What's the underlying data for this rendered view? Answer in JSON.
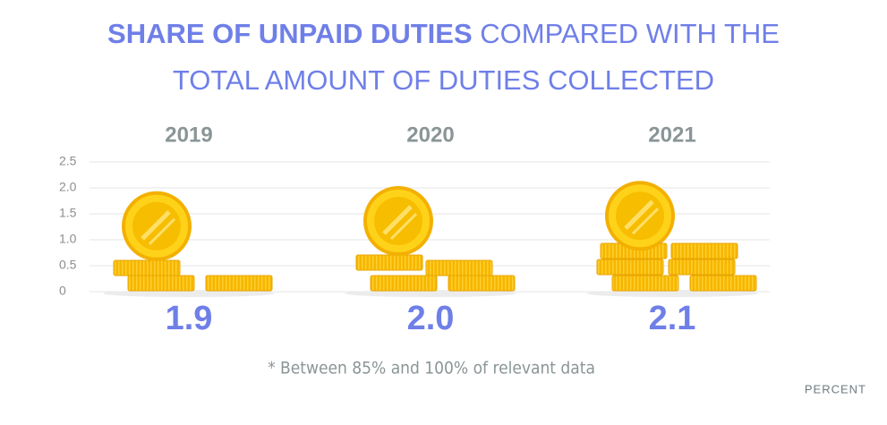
{
  "chart_data": {
    "type": "coin-stack",
    "title": "SHARE OF UNPAID DUTIES",
    "subtitle": "COMPARED WITH THE TOTAL AMOUNT OF DUTIES COLLECTED",
    "categories": [
      "2019",
      "2020",
      "2021"
    ],
    "values": [
      1.9,
      2.0,
      2.1
    ],
    "value_labels": [
      "1.9",
      "2.0",
      "2.1"
    ],
    "ylim": [
      0,
      2.5
    ],
    "yticks": [
      0,
      0.5,
      {
        "value": 1,
        "label": "1.0"
      },
      1.5,
      {
        "value": 2,
        "label": "2.0"
      },
      2.5
    ],
    "grid": true,
    "color": "#ffd21a",
    "note": "* Between 85% and 100% of relevant data",
    "unit": "PERCENT"
  }
}
